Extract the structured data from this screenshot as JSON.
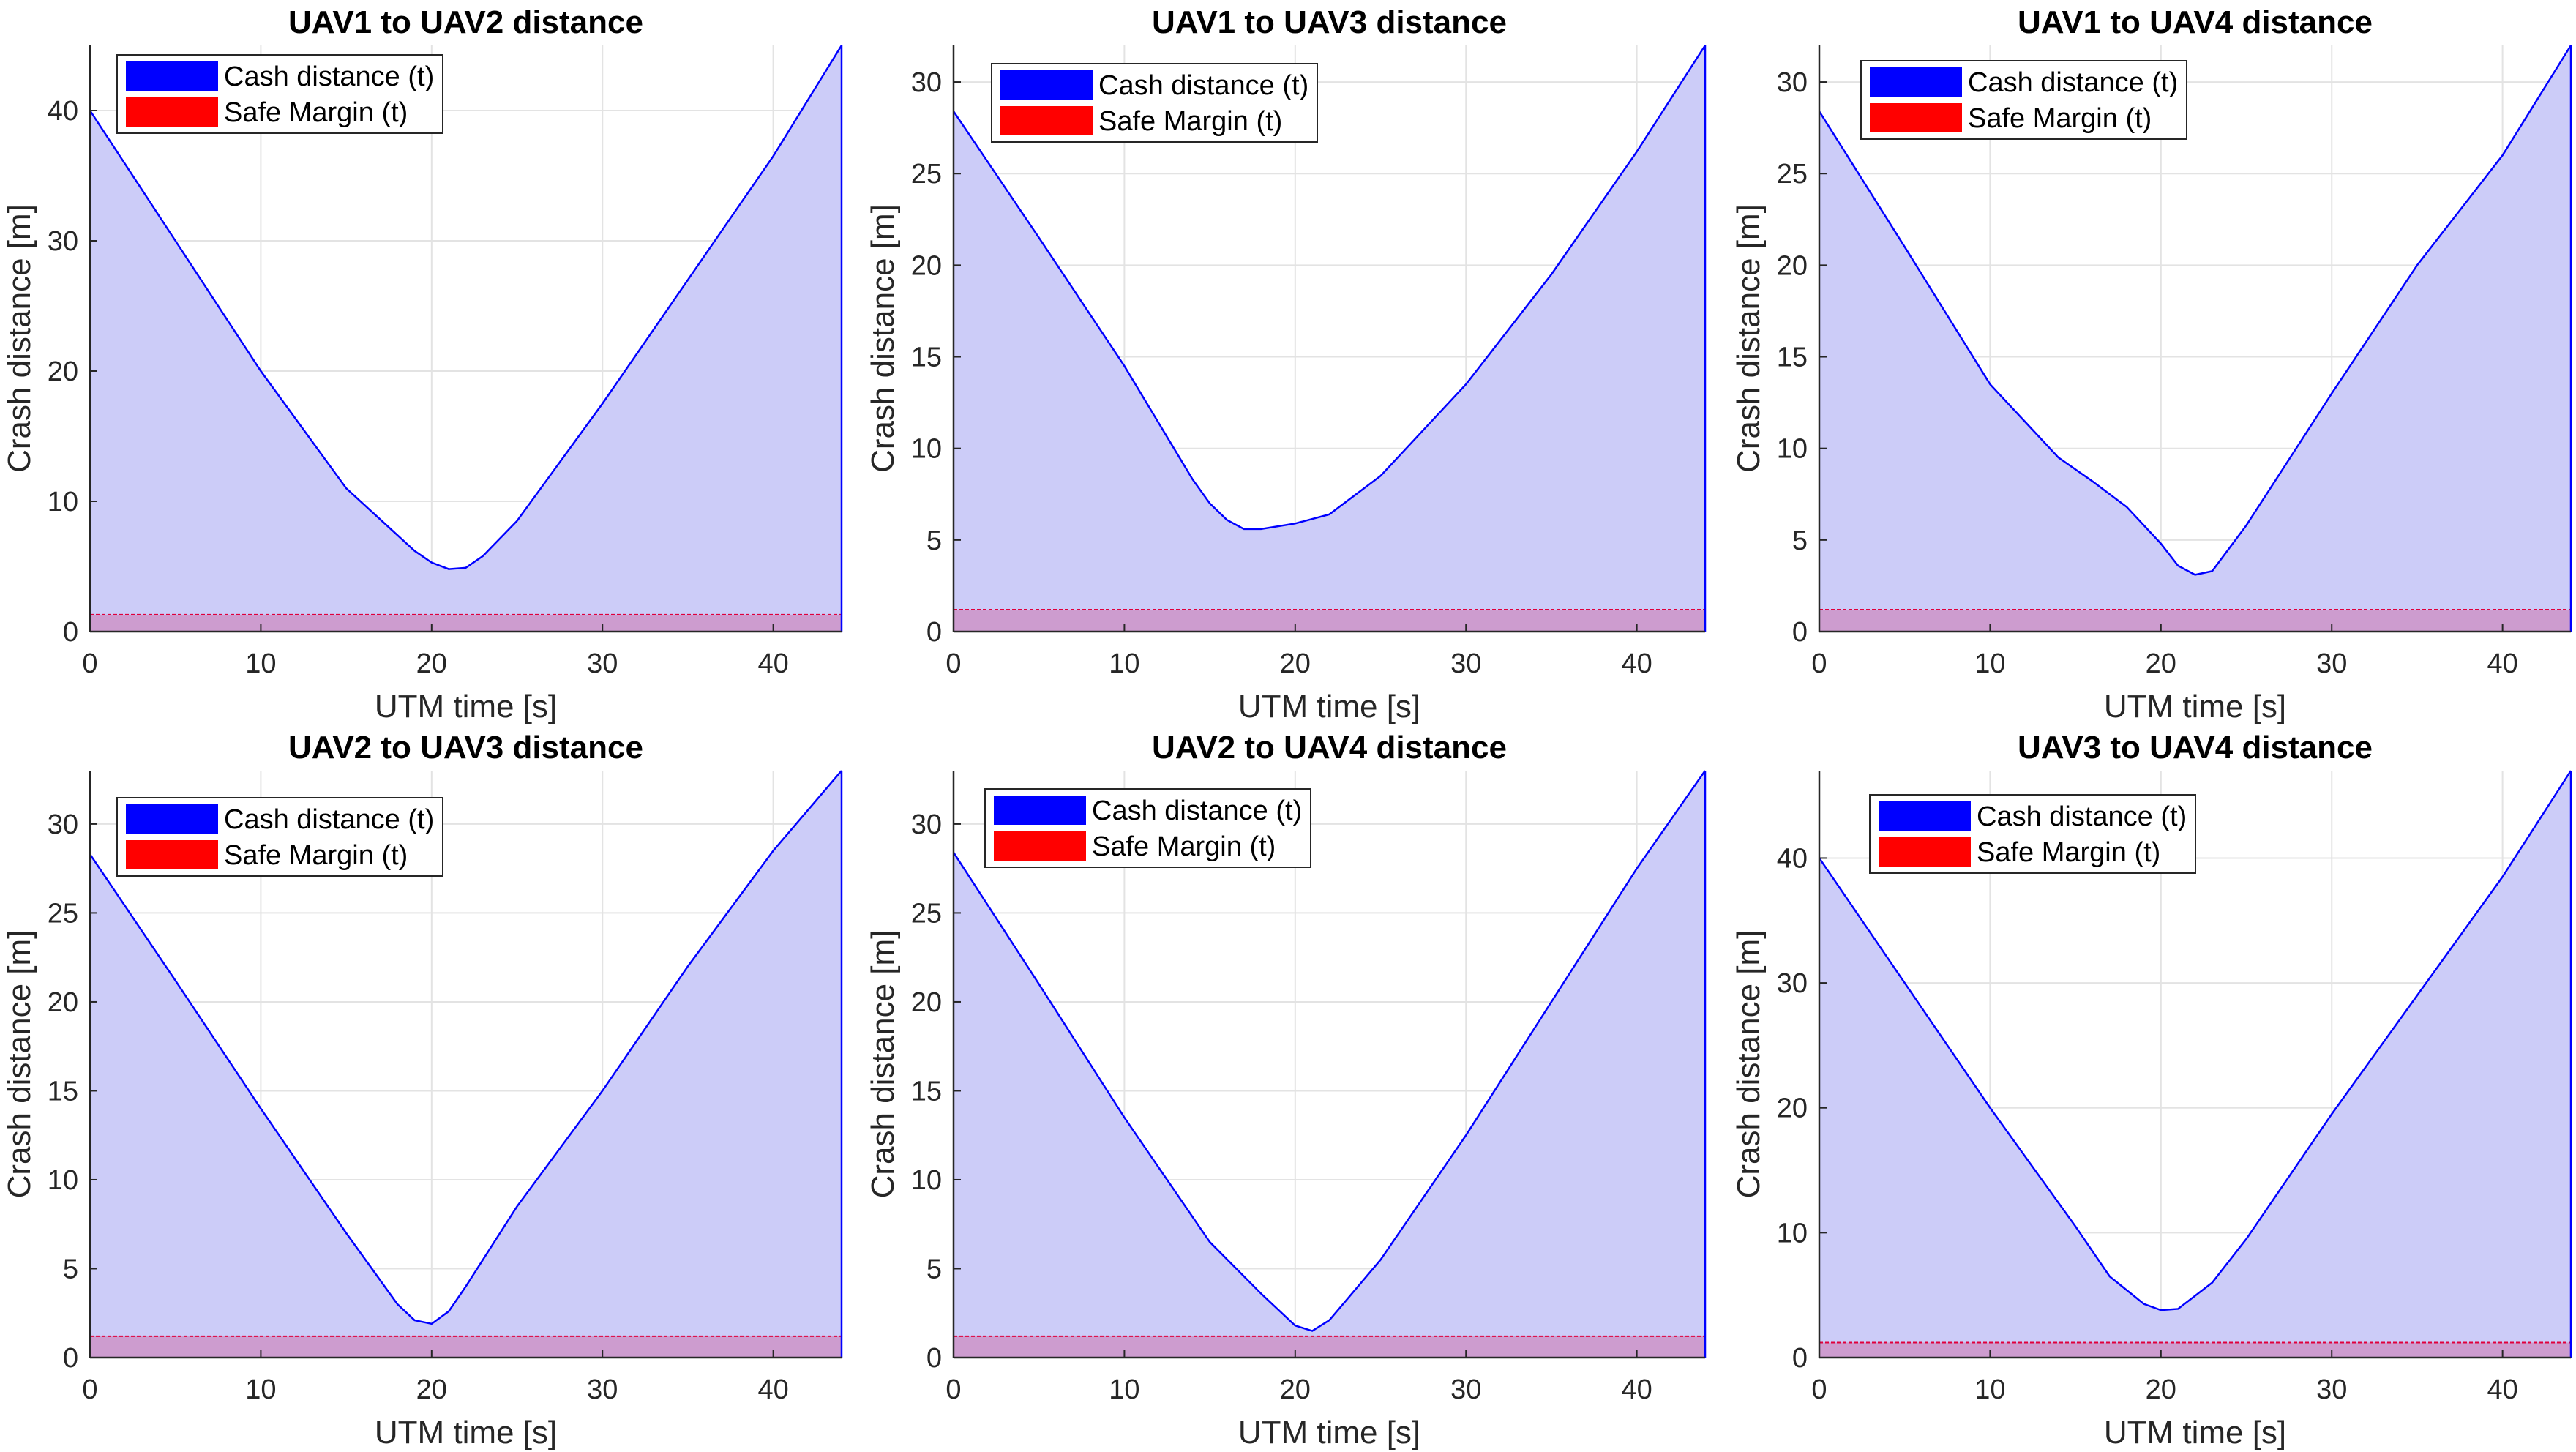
{
  "figure": {
    "colors": {
      "fill": "#ccccf8",
      "line": "#0000ff",
      "margin_line": "#e0003c",
      "margin_fill": "#cc99cc",
      "grid": "#e3e3e3",
      "axis": "#262626",
      "legend_cash": "#0000ff",
      "legend_margin": "#ff0000"
    }
  },
  "chart_data": [
    {
      "type": "area",
      "title": "UAV1 to UAV2 distance",
      "xlabel": "UTM time [s]",
      "ylabel": "Crash distance [m]",
      "xlim": [
        0,
        44
      ],
      "ylim": [
        0,
        45
      ],
      "xticks": [
        0,
        10,
        20,
        30,
        40
      ],
      "yticks": [
        0,
        10,
        20,
        30,
        40
      ],
      "grid": true,
      "legend_position": "top-left",
      "series": [
        {
          "name": "Cash distance (t)",
          "x": [
            0,
            5,
            10,
            15,
            19,
            20,
            21,
            22,
            23,
            25,
            30,
            35,
            40,
            44
          ],
          "y": [
            40,
            30,
            20,
            11,
            6.2,
            5.3,
            4.8,
            4.9,
            5.8,
            8.5,
            17.5,
            27,
            36.5,
            45
          ]
        },
        {
          "name": "Safe Margin (t)",
          "x": [
            0,
            44
          ],
          "y": [
            1.3,
            1.3
          ]
        }
      ]
    },
    {
      "type": "area",
      "title": "UAV1 to UAV3 distance",
      "xlabel": "UTM time [s]",
      "ylabel": "Crash distance [m]",
      "xlim": [
        0,
        44
      ],
      "ylim": [
        0,
        32
      ],
      "xticks": [
        0,
        10,
        20,
        30,
        40
      ],
      "yticks": [
        0,
        5,
        10,
        15,
        20,
        25,
        30
      ],
      "grid": true,
      "legend_position": "top-left",
      "series": [
        {
          "name": "Cash distance (t)",
          "x": [
            0,
            5,
            10,
            14,
            15,
            16,
            17,
            18,
            20,
            22,
            25,
            30,
            35,
            40,
            44
          ],
          "y": [
            28.4,
            21.5,
            14.5,
            8.3,
            7,
            6.1,
            5.6,
            5.6,
            5.9,
            6.4,
            8.5,
            13.5,
            19.5,
            26.2,
            32
          ]
        },
        {
          "name": "Safe Margin (t)",
          "x": [
            0,
            44
          ],
          "y": [
            1.2,
            1.2
          ]
        }
      ]
    },
    {
      "type": "area",
      "title": "UAV1 to UAV4 distance",
      "xlabel": "UTM time [s]",
      "ylabel": "Crash distance [m]",
      "xlim": [
        0,
        44
      ],
      "ylim": [
        0,
        32
      ],
      "xticks": [
        0,
        10,
        20,
        30,
        40
      ],
      "yticks": [
        0,
        5,
        10,
        15,
        20,
        25,
        30
      ],
      "grid": true,
      "legend_position": "top-left",
      "series": [
        {
          "name": "Cash distance (t)",
          "x": [
            0,
            5,
            10,
            14,
            16,
            18,
            20,
            21,
            22,
            23,
            25,
            30,
            35,
            40,
            44
          ],
          "y": [
            28.4,
            21,
            13.5,
            9.5,
            8.2,
            6.8,
            4.8,
            3.6,
            3.1,
            3.3,
            5.8,
            13,
            20,
            26,
            32
          ]
        },
        {
          "name": "Safe Margin (t)",
          "x": [
            0,
            44
          ],
          "y": [
            1.2,
            1.2
          ]
        }
      ]
    },
    {
      "type": "area",
      "title": "UAV2 to UAV3 distance",
      "xlabel": "UTM time [s]",
      "ylabel": "Crash distance [m]",
      "xlim": [
        0,
        44
      ],
      "ylim": [
        0,
        33
      ],
      "xticks": [
        0,
        10,
        20,
        30,
        40
      ],
      "yticks": [
        0,
        5,
        10,
        15,
        20,
        25,
        30
      ],
      "grid": true,
      "legend_position": "top-left",
      "series": [
        {
          "name": "Cash distance (t)",
          "x": [
            0,
            5,
            10,
            15,
            18,
            19,
            20,
            21,
            22,
            25,
            30,
            35,
            40,
            44
          ],
          "y": [
            28.3,
            21.2,
            14,
            7,
            3,
            2.1,
            1.9,
            2.6,
            4,
            8.5,
            15,
            22,
            28.5,
            33
          ]
        },
        {
          "name": "Safe Margin (t)",
          "x": [
            0,
            44
          ],
          "y": [
            1.2,
            1.2
          ]
        }
      ]
    },
    {
      "type": "area",
      "title": "UAV2 to UAV4 distance",
      "xlabel": "UTM time [s]",
      "ylabel": "Crash distance [m]",
      "xlim": [
        0,
        44
      ],
      "ylim": [
        0,
        33
      ],
      "xticks": [
        0,
        10,
        20,
        30,
        40
      ],
      "yticks": [
        0,
        5,
        10,
        15,
        20,
        25,
        30
      ],
      "grid": true,
      "legend_position": "top-left",
      "series": [
        {
          "name": "Cash distance (t)",
          "x": [
            0,
            5,
            10,
            15,
            18,
            20,
            21,
            22,
            25,
            30,
            35,
            40,
            44
          ],
          "y": [
            28.4,
            21,
            13.5,
            6.5,
            3.6,
            1.8,
            1.5,
            2.1,
            5.5,
            12.5,
            20,
            27.5,
            33
          ]
        },
        {
          "name": "Safe Margin (t)",
          "x": [
            0,
            44
          ],
          "y": [
            1.2,
            1.2
          ]
        }
      ]
    },
    {
      "type": "area",
      "title": "UAV3 to UAV4 distance",
      "xlabel": "UTM time [s]",
      "ylabel": "Crash distance [m]",
      "xlim": [
        0,
        44
      ],
      "ylim": [
        0,
        47
      ],
      "xticks": [
        0,
        10,
        20,
        30,
        40
      ],
      "yticks": [
        0,
        10,
        20,
        30,
        40
      ],
      "grid": true,
      "legend_position": "top-left",
      "series": [
        {
          "name": "Cash distance (t)",
          "x": [
            0,
            5,
            10,
            15,
            17,
            19,
            20,
            21,
            23,
            25,
            30,
            35,
            40,
            44
          ],
          "y": [
            40,
            30,
            20,
            10.5,
            6.5,
            4.3,
            3.8,
            3.9,
            6,
            9.5,
            19.5,
            29,
            38.5,
            47
          ]
        },
        {
          "name": "Safe Margin (t)",
          "x": [
            0,
            44
          ],
          "y": [
            1.2,
            1.2
          ]
        }
      ]
    }
  ]
}
